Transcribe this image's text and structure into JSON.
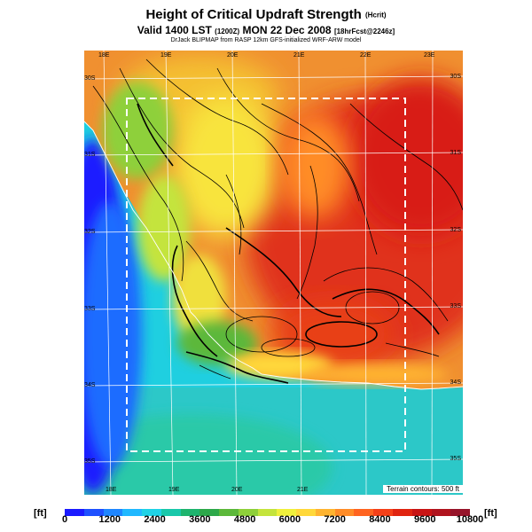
{
  "header": {
    "title": "Height of Critical Updraft Strength",
    "title_unit": "(Hcrit)",
    "valid_line": "Valid 1400 LST",
    "valid_utc": "(1200Z)",
    "valid_date": "MON 22 Dec 2008",
    "forecast_tag": "[18hrFcst@2246z]",
    "model_line": "DrJack BLIPMAP from RASP 12km GFS-initialized WRF-ARW model"
  },
  "map": {
    "top_lon_labels": [
      "18E",
      "19E",
      "20E",
      "21E",
      "22E",
      "23E"
    ],
    "bottom_lon_labels": [
      "18E",
      "19E",
      "20E",
      "21E"
    ],
    "left_lat_labels": [
      "30S",
      "31S",
      "32S",
      "33S",
      "34S",
      "35S"
    ],
    "right_lat_labels": [
      "30S",
      "31S",
      "32S",
      "33S",
      "34S",
      "35S"
    ],
    "terrain_note": "Terrain contours: 500 ft"
  },
  "colorbar": {
    "unit_left": "[ft]",
    "unit_right": "[ft]",
    "tick_labels": [
      "0",
      "1200",
      "2400",
      "3600",
      "4800",
      "6000",
      "7200",
      "8400",
      "9600",
      "10800"
    ],
    "colors": [
      "#1a1aff",
      "#1e50ff",
      "#1f86ff",
      "#20b8ff",
      "#1fd2e6",
      "#19c8aa",
      "#1eb46e",
      "#2da84a",
      "#5cb83a",
      "#8ed03a",
      "#c4e43c",
      "#f0f03c",
      "#ffd83a",
      "#ffb430",
      "#ff8c28",
      "#ff6420",
      "#f54018",
      "#e02410",
      "#c81414",
      "#b0141e",
      "#96142a"
    ]
  }
}
